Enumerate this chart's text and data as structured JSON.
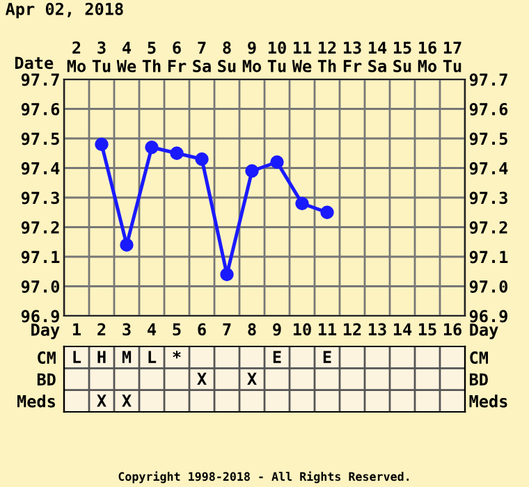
{
  "chart_data": [
    {
      "type": "line",
      "title": "Apr 02, 2018",
      "xlabel": "Date",
      "categories": [
        "2\nMo",
        "3\nTu",
        "4\nWe",
        "5\nTh",
        "6\nFr",
        "7\nSa",
        "8\nSu",
        "9\nMo",
        "10\nTu",
        "11\nWe",
        "12\nTh",
        "13\nFr",
        "14\nSa",
        "15\nSu",
        "16\nMo",
        "17\nTu"
      ],
      "series": [
        {
          "color": "#1a1aff",
          "values": [
            null,
            97.48,
            97.14,
            97.47,
            97.45,
            97.43,
            97.04,
            97.39,
            97.42,
            97.28,
            97.25,
            null,
            null,
            null,
            null,
            null
          ]
        }
      ],
      "ylim": [
        96.9,
        97.7
      ],
      "yticks": [
        {
          "value": 96.9,
          "label": "96.9"
        },
        {
          "value": 97.0,
          "label": "97.0"
        },
        {
          "value": 97.1,
          "label": "97.1"
        },
        {
          "value": 97.2,
          "label": "97.2"
        },
        {
          "value": 97.3,
          "label": "97.3"
        },
        {
          "value": 97.4,
          "label": "97.4"
        },
        {
          "value": 97.5,
          "label": "97.5"
        },
        {
          "value": 97.6,
          "label": "97.6"
        },
        {
          "value": 97.7,
          "label": "97.7"
        }
      ],
      "y2lim": [
        96.9,
        97.7
      ],
      "y2ticks": [
        {
          "value": 96.9,
          "label": "96.9"
        },
        {
          "value": 97.0,
          "label": "97.0"
        },
        {
          "value": 97.1,
          "label": "97.1"
        },
        {
          "value": 97.2,
          "label": "97.2"
        },
        {
          "value": 97.3,
          "label": "97.3"
        },
        {
          "value": 97.4,
          "label": "97.4"
        },
        {
          "value": 97.5,
          "label": "97.5"
        },
        {
          "value": 97.6,
          "label": "97.6"
        },
        {
          "value": 97.7,
          "label": "97.7"
        }
      ],
      "grid": true,
      "marker": "circle",
      "line_style": "solid"
    },
    {
      "type": "heatmap",
      "xlabel": "Day",
      "categories": [
        "1",
        "2",
        "3",
        "4",
        "5",
        "6",
        "7",
        "8",
        "9",
        "10",
        "11",
        "12",
        "13",
        "14",
        "15",
        "16"
      ],
      "y_categories": [
        "CM",
        "BD",
        "Meds"
      ],
      "y2_categories": [
        "CM",
        "BD",
        "Meds"
      ],
      "cells": [
        [
          null,
          null,
          null,
          null,
          null,
          null,
          null,
          null,
          null,
          null,
          null,
          null,
          null,
          null,
          null,
          null
        ],
        [
          null,
          null,
          null,
          null,
          null,
          null,
          null,
          null,
          null,
          null,
          null,
          null,
          null,
          null,
          null,
          null
        ],
        [
          null,
          null,
          null,
          null,
          null,
          null,
          null,
          null,
          null,
          null,
          null,
          null,
          null,
          null,
          null,
          null
        ]
      ],
      "cell_labels": [
        [
          "L",
          "H",
          "M",
          "L",
          "*",
          null,
          null,
          null,
          "E",
          null,
          "E",
          null,
          null,
          null,
          null,
          null
        ],
        [
          null,
          null,
          null,
          null,
          null,
          "X",
          null,
          "X",
          null,
          null,
          null,
          null,
          null,
          null,
          null,
          null
        ],
        [
          null,
          "X",
          "X",
          null,
          null,
          null,
          null,
          null,
          null,
          null,
          null,
          null,
          null,
          null,
          null,
          null
        ]
      ],
      "annotations": [
        "Copyright 1998-2018 - All Rights Reserved."
      ]
    }
  ]
}
